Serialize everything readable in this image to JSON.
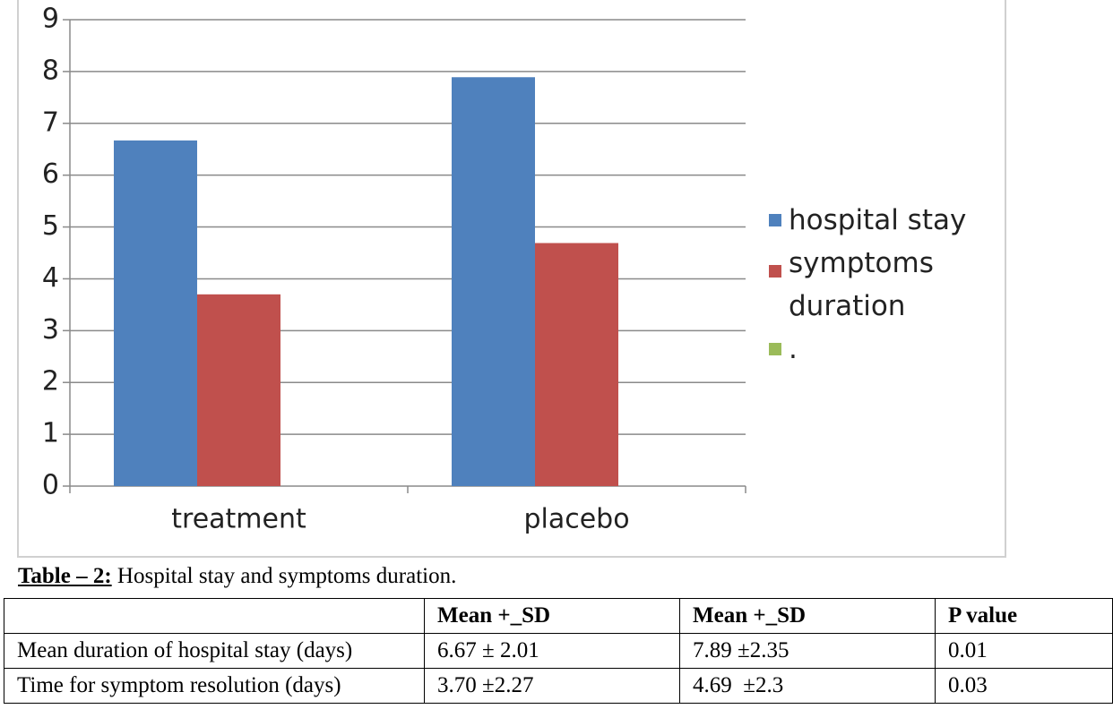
{
  "chart_data": {
    "type": "bar",
    "categories": [
      "treatment",
      "placebo"
    ],
    "series": [
      {
        "name": "hospital stay",
        "color": "#4f81bd",
        "values": [
          6.67,
          7.89
        ]
      },
      {
        "name": "symptoms duration",
        "color": "#c0504d",
        "values": [
          3.7,
          4.69
        ]
      },
      {
        "name": ".",
        "color": "#9bbb59",
        "values": [
          null,
          null
        ]
      }
    ],
    "ylim": [
      0,
      9
    ],
    "yticks": [
      0,
      1,
      2,
      3,
      4,
      5,
      6,
      7,
      8,
      9
    ],
    "grid": true,
    "legend": "right"
  },
  "table": {
    "caption_label": "Table – 2:",
    "caption": " Hospital stay and symptoms duration.",
    "header": [
      "Mean +_SD",
      "Mean +_SD",
      "P value"
    ],
    "rows": [
      [
        "Mean duration of hospital stay (days)",
        "6.67 ± 2.01",
        "7.89 ±2.35",
        "0.01"
      ],
      [
        "Time for symptom resolution (days)",
        "3.70 ±2.27",
        "4.69  ±2.3",
        "0.03"
      ]
    ]
  }
}
